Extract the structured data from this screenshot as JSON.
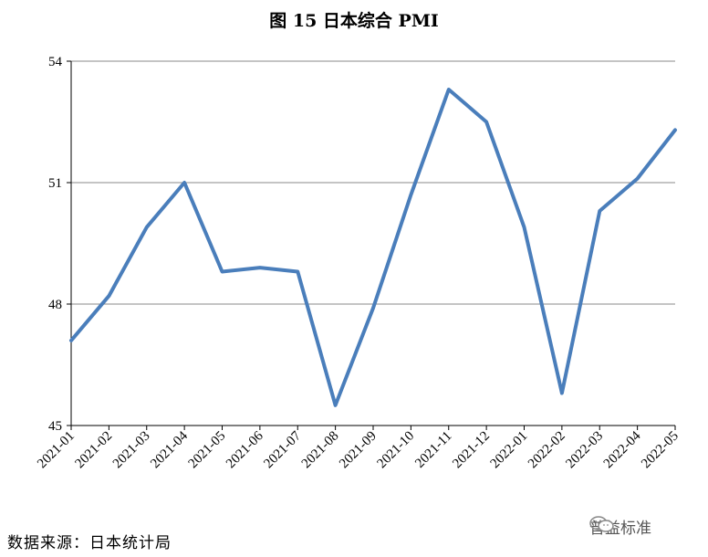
{
  "chart_data": {
    "type": "line",
    "title": "图 15  日本综合 PMI",
    "categories": [
      "2021-01",
      "2021-02",
      "2021-03",
      "2021-04",
      "2021-05",
      "2021-06",
      "2021-07",
      "2021-08",
      "2021-09",
      "2021-10",
      "2021-11",
      "2021-12",
      "2022-01",
      "2022-02",
      "2022-03",
      "2022-04",
      "2022-05"
    ],
    "series": [
      {
        "values": [
          47.1,
          48.2,
          49.9,
          51.0,
          48.8,
          48.9,
          48.8,
          45.5,
          47.9,
          50.7,
          53.3,
          52.5,
          49.9,
          45.8,
          50.3,
          51.1,
          52.3
        ]
      }
    ],
    "ylim": [
      45,
      54
    ],
    "yticks": [
      45,
      48,
      51,
      54
    ],
    "xlabel": "",
    "ylabel": "",
    "grid": "horizontal",
    "line_color": "#4a7ebb"
  },
  "source_text": "数据来源：日本统计局",
  "watermark_text": "普益标准",
  "watermark_icon": "wechat-icon"
}
